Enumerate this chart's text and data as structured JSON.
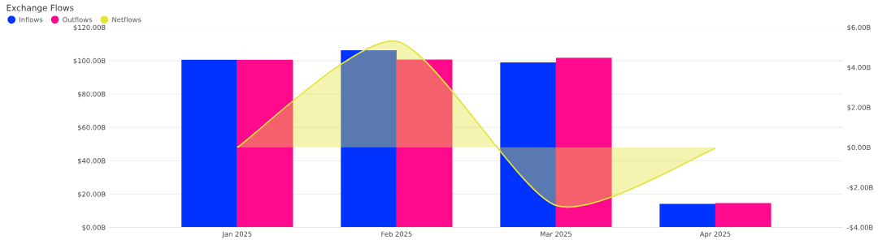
{
  "chart_data": {
    "type": "bar",
    "title": "Exchange Flows",
    "categories": [
      "Jan 2025",
      "Feb 2025",
      "Mar 2025",
      "Apr 2025"
    ],
    "series": [
      {
        "name": "Inflows",
        "color": "#0033ff",
        "values": [
          100.5,
          106.2,
          98.9,
          14.1
        ]
      },
      {
        "name": "Outflows",
        "color": "#ff0a8c",
        "values": [
          100.5,
          100.6,
          101.8,
          14.6
        ]
      },
      {
        "name": "Netflows",
        "type": "area",
        "axis": "y2",
        "color": "#e3e33c",
        "values": [
          0,
          5.3,
          -2.9,
          -0.05
        ]
      }
    ],
    "ylim": [
      0,
      120
    ],
    "yticks": [
      {
        "value": 0,
        "label": "$0.00B"
      },
      {
        "value": 20,
        "label": "$20.00B"
      },
      {
        "value": 40,
        "label": "$40.00B"
      },
      {
        "value": 60,
        "label": "$60.00B"
      },
      {
        "value": 80,
        "label": "$80.00B"
      },
      {
        "value": 100,
        "label": "$100.00B"
      },
      {
        "value": 120,
        "label": "$120.00B"
      }
    ],
    "y2lim": [
      -4,
      6
    ],
    "y2ticks": [
      {
        "value": -4,
        "label": "-$4.00B"
      },
      {
        "value": -2,
        "label": "-$2.00B"
      },
      {
        "value": 0,
        "label": "$0.00B"
      },
      {
        "value": 2,
        "label": "$2.00B"
      },
      {
        "value": 4,
        "label": "$4.00B"
      },
      {
        "value": 6,
        "label": "$6.00B"
      }
    ],
    "grid": "y",
    "legend": "top left"
  }
}
